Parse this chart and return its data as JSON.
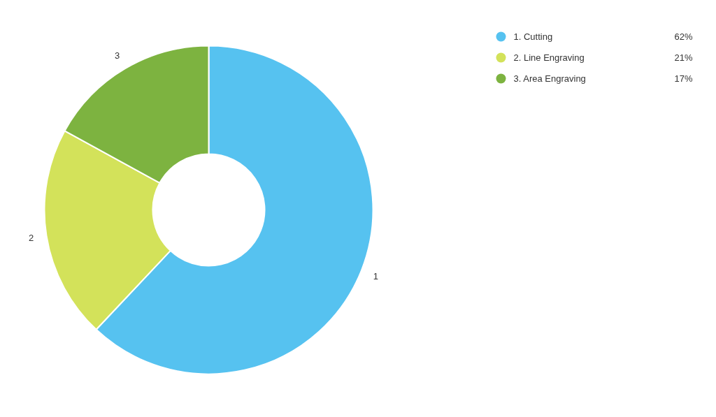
{
  "chart_data": {
    "type": "donut",
    "categories": [
      "1. Cutting",
      "2. Line Engraving",
      "3. Area Engraving"
    ],
    "values": [
      62,
      21,
      17
    ],
    "colors": [
      "#56c2f0",
      "#d3e25a",
      "#7db340"
    ],
    "value_labels": [
      "62%",
      "21%",
      "17%"
    ],
    "annotations": [
      {
        "text": "1",
        "x": "1. Cutting"
      },
      {
        "text": "2",
        "x": "2. Line Engraving"
      },
      {
        "text": "3",
        "x": "3. Area Engraving"
      }
    ],
    "legend": "top right"
  }
}
